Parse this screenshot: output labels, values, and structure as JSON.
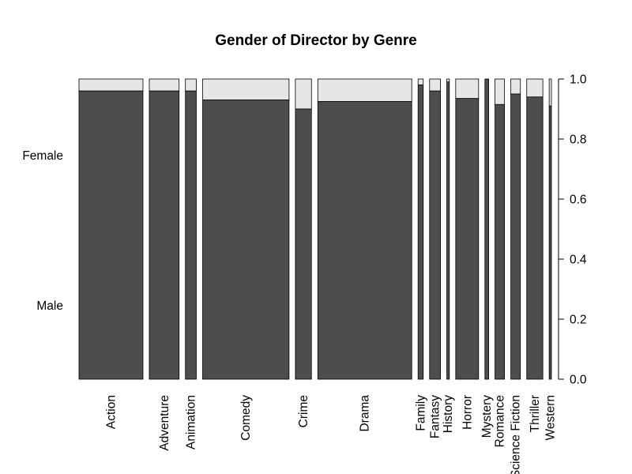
{
  "chart_data": {
    "type": "mosaic",
    "title": "Gender of Director by Genre",
    "xlabel": "",
    "ylabel": "",
    "ylim": [
      0,
      1
    ],
    "y_ticks": [
      "0.0",
      "0.2",
      "0.4",
      "0.6",
      "0.8",
      "1.0"
    ],
    "row_labels": [
      "Male",
      "Female"
    ],
    "categories": [
      "Action",
      "Adventure",
      "Animation",
      "Comedy",
      "Crime",
      "Drama",
      "Family",
      "Fantasy",
      "History",
      "Horror",
      "Mystery",
      "Romance",
      "Science Fiction",
      "Thriller",
      "Western"
    ],
    "category_share": [
      0.1333,
      0.0621,
      0.0227,
      0.1801,
      0.0335,
      0.1958,
      0.0108,
      0.0227,
      0.0054,
      0.0477,
      0.0078,
      0.0199,
      0.0199,
      0.0336,
      0.0047
    ],
    "series": [
      {
        "name": "Male",
        "values": [
          0.96,
          0.96,
          0.96,
          0.93,
          0.9,
          0.925,
          0.98,
          0.96,
          0.99,
          0.935,
          1.0,
          0.915,
          0.95,
          0.94,
          0.91
        ]
      },
      {
        "name": "Female",
        "values": [
          0.04,
          0.04,
          0.04,
          0.07,
          0.1,
          0.075,
          0.02,
          0.04,
          0.01,
          0.065,
          0.0,
          0.085,
          0.05,
          0.06,
          0.09
        ]
      }
    ],
    "colors": {
      "male": "#4d4d4d",
      "female": "#e6e6e6",
      "stroke": "#000000"
    }
  }
}
